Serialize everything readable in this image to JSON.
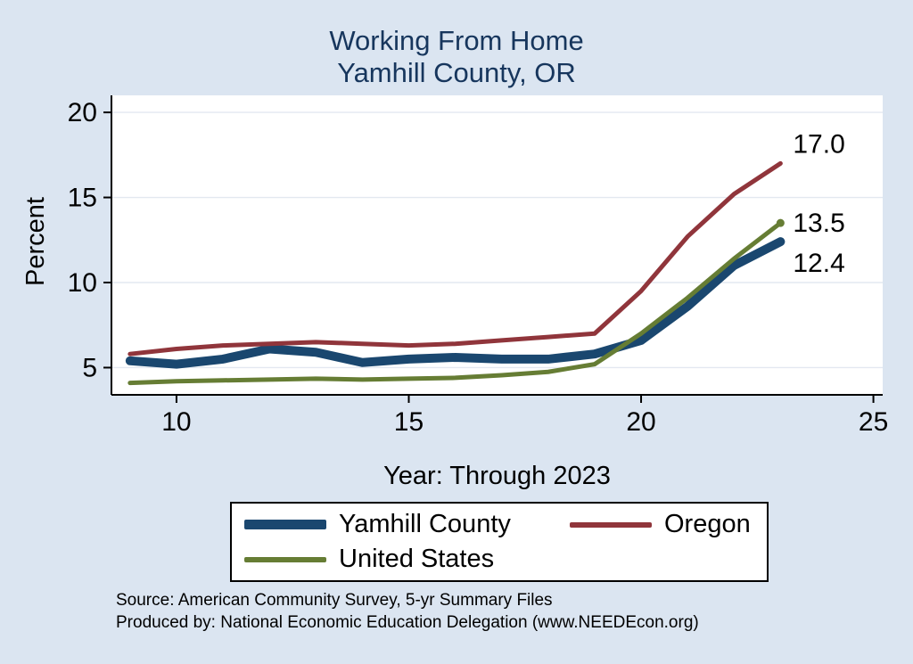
{
  "title": {
    "line1": "Working From Home",
    "line2": "Yamhill County, OR"
  },
  "footer": {
    "source": "Source: American Community Survey, 5-yr Summary Files",
    "produced_by": "Produced by: National Economic Education Delegation (www.NEEDEcon.org)"
  },
  "colors": {
    "background": "#dbe5f1",
    "title": "#17365d",
    "axis": "#000000",
    "grid": "#e3e8f0",
    "plot_background": "#ffffff"
  },
  "chart_data": {
    "type": "line",
    "title": "Working From Home — Yamhill County, OR",
    "xlabel": "Year: Through 2023",
    "ylabel": "Percent",
    "xlim": [
      8.6,
      25.2
    ],
    "ylim": [
      3.4,
      21.0
    ],
    "xticks": [
      10,
      15,
      20,
      25
    ],
    "yticks": [
      5,
      10,
      15,
      20
    ],
    "grid": "horizontal",
    "legend_position": "bottom",
    "x": [
      9,
      10,
      11,
      12,
      13,
      14,
      15,
      16,
      17,
      18,
      19,
      20,
      21,
      22,
      23
    ],
    "series": [
      {
        "id": "yamhill-county",
        "name": "Yamhill County",
        "color": "#1a476f",
        "width": 10,
        "values": [
          5.4,
          5.2,
          5.5,
          6.1,
          5.9,
          5.3,
          5.5,
          5.6,
          5.5,
          5.5,
          5.8,
          6.6,
          8.6,
          11.0,
          12.4
        ],
        "end_label": "12.4",
        "label_dy": 24,
        "end_marker": false
      },
      {
        "id": "oregon",
        "name": "Oregon",
        "color": "#90353b",
        "width": 5,
        "values": [
          5.8,
          6.1,
          6.3,
          6.4,
          6.5,
          6.4,
          6.3,
          6.4,
          6.6,
          6.8,
          7.0,
          9.5,
          12.7,
          15.2,
          17.0
        ],
        "end_label": "17.0",
        "label_dy": -22,
        "end_marker": false
      },
      {
        "id": "united-states",
        "name": "United States",
        "color": "#667d34",
        "width": 5,
        "values": [
          4.1,
          4.2,
          4.25,
          4.3,
          4.35,
          4.3,
          4.35,
          4.4,
          4.55,
          4.75,
          5.2,
          7.0,
          9.1,
          11.4,
          13.5
        ],
        "end_label": "13.5",
        "label_dy": 0,
        "end_marker": true
      }
    ]
  }
}
